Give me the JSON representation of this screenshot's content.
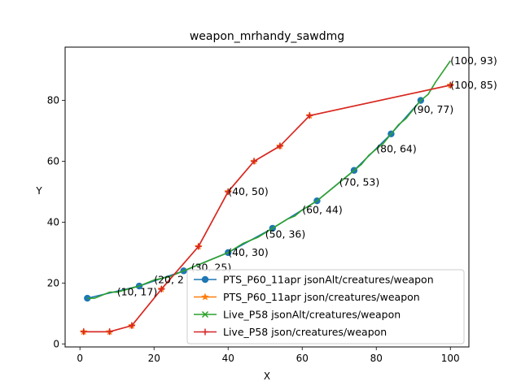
{
  "chart_data": {
    "type": "line",
    "title": "weapon_mrhandy_sawdmg",
    "xlabel": "X",
    "ylabel": "Y",
    "xlim": [
      -4,
      105
    ],
    "ylim": [
      -1,
      97.5
    ],
    "xticks": [
      0,
      20,
      40,
      60,
      80,
      100
    ],
    "yticks": [
      0,
      20,
      40,
      60,
      80
    ],
    "grid": false,
    "legend_position": "lower-right",
    "series": [
      {
        "name": "PTS_P60_11apr jsonAlt/creatures/weapon",
        "color": "#1f77b4",
        "marker": "circle",
        "x": [
          2,
          16,
          28,
          40,
          52,
          64,
          74,
          84,
          92
        ],
        "y": [
          15,
          19,
          24,
          30,
          38,
          47,
          57,
          69,
          80
        ]
      },
      {
        "name": "PTS_P60_11apr json/creatures/weapon",
        "color": "#ff7f0e",
        "marker": "star",
        "x": [
          1,
          8,
          14,
          22,
          32,
          40,
          47,
          54,
          62,
          100
        ],
        "y": [
          4,
          4,
          6,
          18,
          32,
          50,
          60,
          65,
          75,
          85
        ]
      },
      {
        "name": "Live_P58 jsonAlt/creatures/weapon",
        "color": "#2ca02c",
        "marker": "x",
        "x": [
          2,
          4,
          8,
          10,
          13,
          16,
          20,
          24,
          28,
          32,
          36,
          40,
          44,
          48,
          52,
          56,
          58,
          60,
          64,
          68,
          72,
          74,
          76,
          78,
          80,
          82,
          84,
          86,
          88,
          90,
          92,
          94,
          96,
          100
        ],
        "y": [
          15,
          15,
          17,
          17,
          18,
          19,
          21,
          22,
          24,
          26,
          28,
          30,
          33,
          35,
          38,
          41,
          42,
          44,
          47,
          51,
          55,
          57,
          59,
          62,
          64,
          66,
          69,
          72,
          74,
          77,
          80,
          82,
          86,
          93
        ]
      },
      {
        "name": "Live_P58 json/creatures/weapon",
        "color": "#d62728",
        "marker": "plus",
        "x": [
          1,
          8,
          14,
          22,
          32,
          40,
          47,
          54,
          62,
          100
        ],
        "y": [
          4,
          4,
          6,
          18,
          32,
          50,
          60,
          65,
          75,
          85
        ]
      }
    ],
    "annotations": [
      {
        "text": "(10, 17)",
        "x": 10,
        "y": 17
      },
      {
        "text": "(20, 2",
        "x": 20,
        "y": 21
      },
      {
        "text": "(30, 25)",
        "x": 30,
        "y": 25
      },
      {
        "text": "(40, 30)",
        "x": 40,
        "y": 30
      },
      {
        "text": "(40, 50)",
        "x": 40,
        "y": 50
      },
      {
        "text": "(50, 36)",
        "x": 50,
        "y": 36
      },
      {
        "text": "(60, 44)",
        "x": 60,
        "y": 44
      },
      {
        "text": "(70, 53)",
        "x": 70,
        "y": 53
      },
      {
        "text": "(80, 64)",
        "x": 80,
        "y": 64
      },
      {
        "text": "(90, 77)",
        "x": 90,
        "y": 77
      },
      {
        "text": "(100, 85)",
        "x": 100,
        "y": 85
      },
      {
        "text": "(100, 93)",
        "x": 100,
        "y": 93
      }
    ]
  }
}
